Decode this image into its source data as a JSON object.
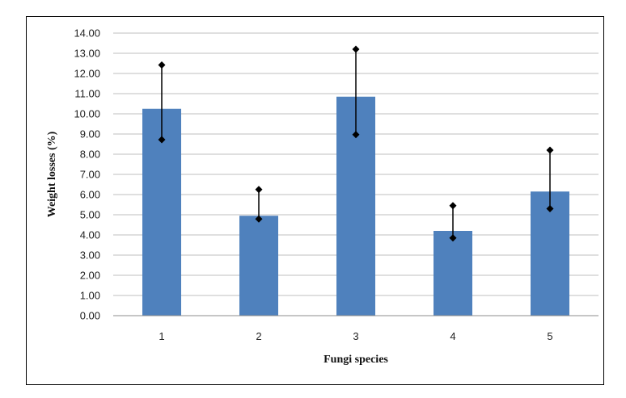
{
  "chart_data": {
    "type": "bar",
    "categories": [
      "1",
      "2",
      "3",
      "4",
      "5"
    ],
    "values": [
      10.25,
      4.95,
      10.85,
      4.2,
      6.15
    ],
    "error_bars": [
      {
        "low": 8.72,
        "high": 12.42
      },
      {
        "low": 4.79,
        "high": 6.25
      },
      {
        "low": 8.97,
        "high": 13.2
      },
      {
        "low": 3.85,
        "high": 5.45
      },
      {
        "low": 5.3,
        "high": 8.2
      }
    ],
    "xlabel": "Fungi species",
    "ylabel": "Weight losses (%)",
    "ylim": [
      0,
      14
    ],
    "yticks": [
      "0.00",
      "1.00",
      "2.00",
      "3.00",
      "4.00",
      "5.00",
      "6.00",
      "7.00",
      "8.00",
      "9.00",
      "10.00",
      "11.00",
      "12.00",
      "13.00",
      "14.00"
    ],
    "grid": true,
    "legend": "none",
    "bar_color": "#4f81bd",
    "grid_color": "#bfbfbf",
    "error_color": "#000000"
  }
}
